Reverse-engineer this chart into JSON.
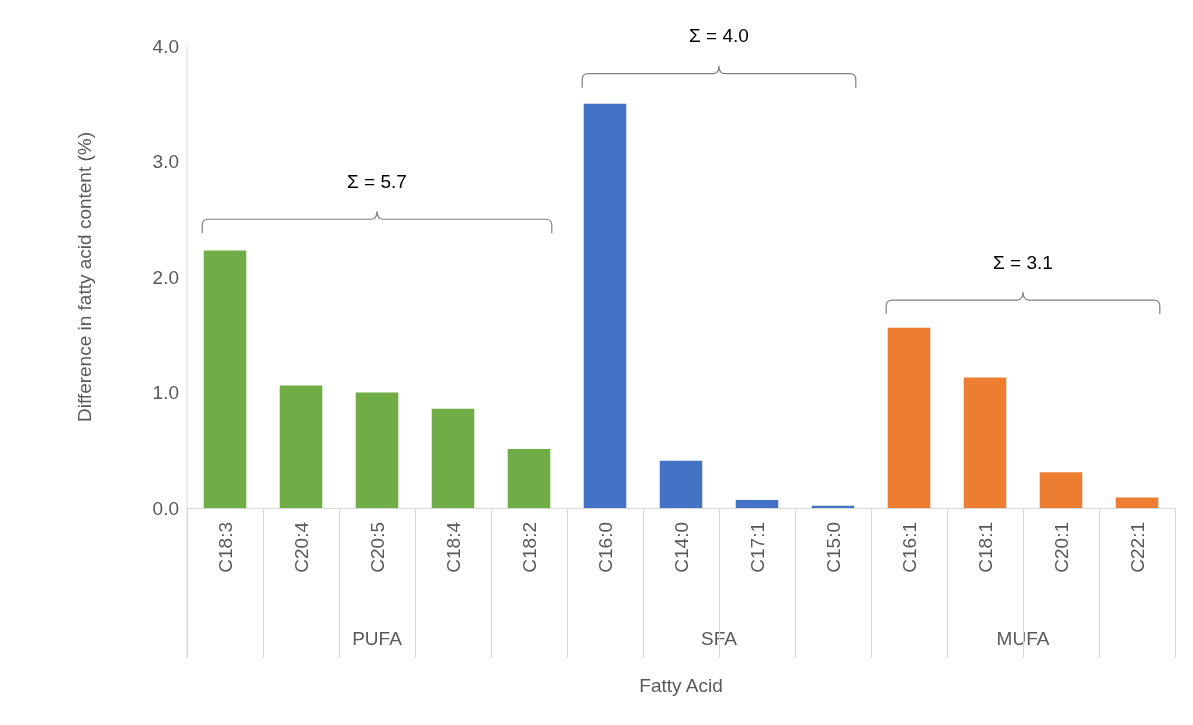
{
  "chart_data": {
    "type": "bar",
    "ylabel": "Difference in fatty acid content (%)",
    "categories": [
      "C18:3",
      "C20:4",
      "C20:5",
      "C18:4",
      "C18:2",
      "C16:0",
      "C14:0",
      "C17:1",
      "C15:0",
      "C16:1",
      "C18:1",
      "C20:1",
      "C22:1"
    ],
    "series": [
      {
        "color": "#70ad47",
        "values": [
          2.23,
          1.06,
          1.0,
          0.86,
          0.51,
          null,
          null,
          null,
          null,
          null,
          null,
          null,
          null
        ]
      },
      {
        "color": "#4472c4",
        "values": [
          null,
          null,
          null,
          null,
          null,
          3.5,
          0.41,
          0.07,
          0.02,
          null,
          null,
          null,
          null
        ]
      },
      {
        "color": "#ed7d31",
        "values": [
          null,
          null,
          null,
          null,
          null,
          null,
          null,
          null,
          null,
          1.56,
          1.13,
          0.31,
          0.09
        ]
      }
    ],
    "stacked": true,
    "ylim": [
      0,
      4
    ],
    "yticks": [
      {
        "value": 0,
        "label": "0.0"
      },
      {
        "value": 1,
        "label": "1.0"
      },
      {
        "value": 2,
        "label": "2.0"
      },
      {
        "value": 3,
        "label": "3.0"
      },
      {
        "value": 4,
        "label": "4.0"
      }
    ],
    "grid": false,
    "annotations": [
      "Σ = 5.7",
      "Σ = 4.0",
      "Σ = 3.1",
      "PUFA",
      "SFA",
      "MUFA",
      "Fatty Acid"
    ]
  }
}
